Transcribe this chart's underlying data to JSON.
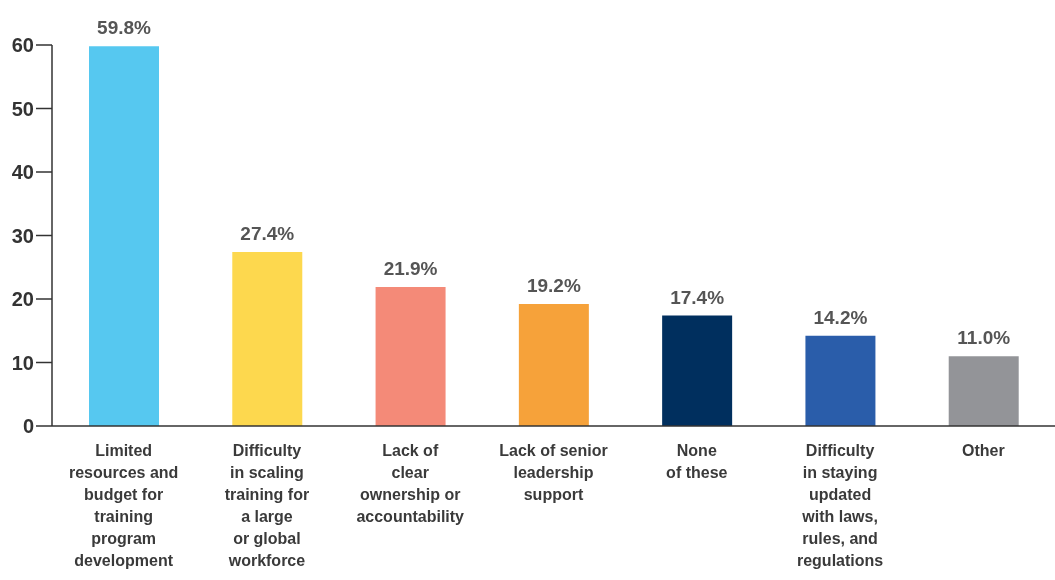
{
  "chart_data": {
    "type": "bar",
    "categories": [
      "Limited\nresources and\nbudget for\ntraining\nprogram\ndevelopment",
      "Difficulty\nin scaling\ntraining for\na large\nor global\nworkforce",
      "Lack of\nclear\nownership or\naccountability",
      "Lack of senior\nleadership\nsupport",
      "None\nof these",
      "Difficulty\nin staying\nupdated\nwith laws,\nrules, and\nregulations",
      "Other"
    ],
    "values": [
      59.8,
      27.4,
      21.9,
      19.2,
      17.4,
      14.2,
      11.0
    ],
    "colors": [
      "#56c8f0",
      "#fdd84e",
      "#f48a78",
      "#f6a23a",
      "#002f5e",
      "#2a5daa",
      "#939498"
    ],
    "value_labels": [
      "59.8%",
      "27.4%",
      "21.9%",
      "19.2%",
      "17.4%",
      "14.2%",
      "11.0%"
    ],
    "ylim": [
      0,
      60
    ],
    "yticks": [
      0,
      10,
      20,
      30,
      40,
      50,
      60
    ],
    "grid": false
  }
}
